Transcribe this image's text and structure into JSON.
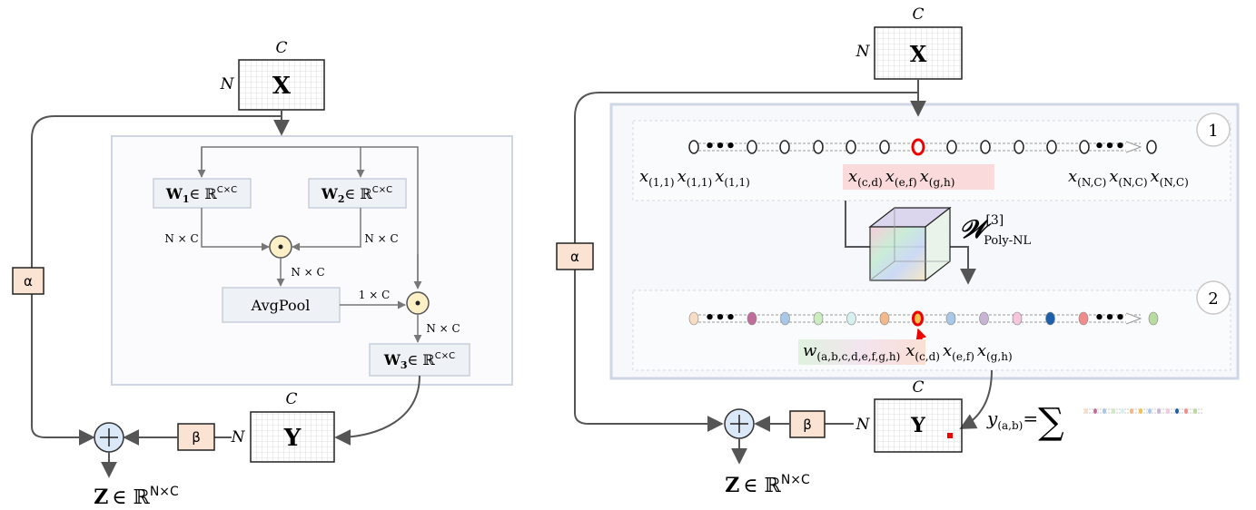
{
  "left": {
    "x_label": "X",
    "y_label": "Y",
    "c_label": "C",
    "n_label": "N",
    "w1": {
      "main": "W",
      "sub": "1",
      "rest": "∈ ℝ",
      "sup": "C×C"
    },
    "w2": {
      "main": "W",
      "sub": "2",
      "rest": "∈ ℝ",
      "sup": "C×C"
    },
    "w3": {
      "main": "W",
      "sub": "3",
      "rest": "∈ ℝ",
      "sup": "C×C"
    },
    "nxc": "N × C",
    "onexc": "1 × C",
    "avgpool": "AvgPool",
    "alpha": "α",
    "beta": "β",
    "z": {
      "main": "Z",
      "rest": "∈ ℝ",
      "sup": "N×C"
    }
  },
  "right": {
    "x_label": "X",
    "y_label": "Y",
    "c_label": "C",
    "n_label": "N",
    "alpha": "α",
    "beta": "β",
    "step1": "1",
    "step2": "2",
    "seq_left": [
      {
        "v": "x",
        "s": "(1,1)"
      },
      {
        "v": "x",
        "s": "(1,1)"
      },
      {
        "v": "x",
        "s": "(1,1)"
      }
    ],
    "seq_mid": [
      {
        "v": "x",
        "s": "(c,d)"
      },
      {
        "v": "x",
        "s": "(e,f)"
      },
      {
        "v": "x",
        "s": "(g,h)"
      }
    ],
    "seq_right": [
      {
        "v": "x",
        "s": "(N,C)"
      },
      {
        "v": "x",
        "s": "(N,C)"
      },
      {
        "v": "x",
        "s": "(N,C)"
      }
    ],
    "weight": {
      "main": "𝒲",
      "sup": "[3]",
      "sub": "Poly-NL"
    },
    "w_term": {
      "v": "w",
      "s": "(a,b,c,d,e,f,g,h)"
    },
    "x_terms": [
      {
        "v": "x",
        "s": "(c,d)"
      },
      {
        "v": "x",
        "s": "(e,f)"
      },
      {
        "v": "x",
        "s": "(g,h)"
      }
    ],
    "y_eq": {
      "v": "y",
      "s": "(a,b)",
      "eq": "=",
      "sum": "∑"
    },
    "z": {
      "main": "Z",
      "rest": "∈ ℝ",
      "sup": "N×C"
    },
    "colored_dots": [
      "#f9dcc4",
      "#c06c9a",
      "#a9c8e8",
      "#cdecc0",
      "#d6f0f0",
      "#f4b98a",
      "#f2c14e",
      "#a9c8e8",
      "#c8b4d4",
      "#f5c6dc",
      "#1f5fa8",
      "#f08c8c",
      "#b8dca0"
    ]
  }
}
